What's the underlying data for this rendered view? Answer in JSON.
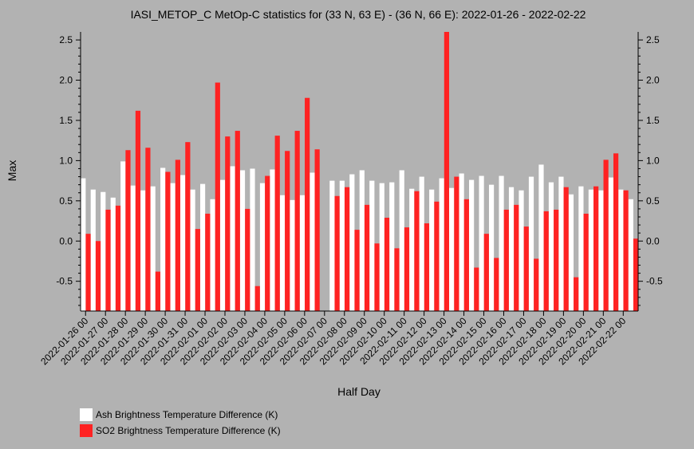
{
  "chart_data": {
    "type": "bar",
    "title": "IASI_METOP_C MetOp-C statistics for (33 N, 63 E) - (36 N, 66 E): 2022-01-26 - 2022-02-22",
    "xlabel": "Half Day",
    "ylabel": "Max",
    "ylim": [
      -0.87,
      2.6
    ],
    "yticks": [
      "-0.5",
      "0.0",
      "0.5",
      "1.0",
      "1.5",
      "2.0",
      "2.5"
    ],
    "xtick_labels": [
      "2022-01-26 00",
      "2022-01-27 00",
      "2022-01-28 00",
      "2022-01-29 00",
      "2022-01-30 00",
      "2022-01-31 00",
      "2022-02-01 00",
      "2022-02-02 00",
      "2022-02-03 00",
      "2022-02-04 00",
      "2022-02-05 00",
      "2022-02-06 00",
      "2022-02-07 00",
      "2022-02-08 00",
      "2022-02-09 00",
      "2022-02-10 00",
      "2022-02-11 00",
      "2022-02-12 00",
      "2022-02-13 00",
      "2022-02-14 00",
      "2022-02-15 00",
      "2022-02-16 00",
      "2022-02-17 00",
      "2022-02-18 00",
      "2022-02-19 00",
      "2022-02-20 00",
      "2022-02-21 00",
      "2022-02-22 00"
    ],
    "grid": false,
    "legend_position": "bottom-left",
    "series": [
      {
        "name": "Ash Brightness Temperature Difference (K)",
        "color": "#ffffff",
        "values": [
          0.78,
          0.64,
          0.61,
          0.54,
          0.99,
          0.69,
          0.63,
          0.68,
          0.91,
          0.72,
          0.82,
          0.64,
          0.71,
          0.52,
          0.76,
          0.93,
          0.88,
          0.9,
          0.72,
          0.89,
          0.57,
          0.51,
          0.57,
          0.85,
          null,
          0.75,
          0.75,
          0.83,
          0.88,
          0.75,
          0.72,
          0.73,
          0.88,
          0.65,
          0.8,
          0.64,
          0.78,
          0.66,
          0.84,
          0.76,
          0.81,
          0.7,
          0.81,
          0.67,
          0.63,
          0.8,
          0.95,
          0.73,
          0.8,
          0.58,
          0.68,
          0.64,
          0.63,
          0.79,
          0.64,
          0.52
        ]
      },
      {
        "name": "SO2 Brightness Temperature Difference (K)",
        "color": "#ff2222",
        "values": [
          0.09,
          0.0,
          0.39,
          0.44,
          1.13,
          1.62,
          1.16,
          -0.38,
          0.86,
          1.01,
          1.23,
          0.15,
          0.34,
          1.97,
          1.3,
          1.37,
          0.4,
          -0.56,
          0.81,
          1.31,
          1.12,
          1.37,
          1.78,
          1.14,
          null,
          0.56,
          0.67,
          0.14,
          0.45,
          -0.03,
          0.29,
          -0.09,
          0.17,
          0.62,
          0.22,
          0.49,
          2.6,
          0.8,
          0.52,
          -0.33,
          0.09,
          -0.21,
          0.39,
          0.45,
          0.18,
          -0.22,
          0.37,
          0.39,
          0.67,
          -0.45,
          0.34,
          0.68,
          1.01,
          1.09,
          0.63,
          0.03
        ]
      }
    ]
  }
}
